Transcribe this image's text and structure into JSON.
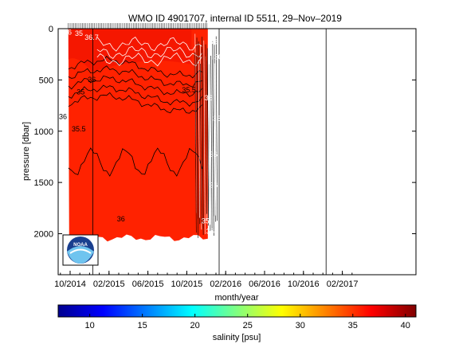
{
  "chart_data": {
    "type": "heatmap",
    "title": "WMO ID 4901707, internal ID 5511, 29–Nov–2019",
    "xlabel": "month/year",
    "ylabel": "pressure [dbar]",
    "x_ticks": [
      "10/2014",
      "02/2015",
      "06/2015",
      "10/2015",
      "02/2016",
      "06/2016",
      "10/2016",
      "02/2017"
    ],
    "y_ticks": [
      0,
      500,
      1000,
      1500,
      2000
    ],
    "y_range": [
      0,
      2400
    ],
    "y_inverted": true,
    "data_x_range": [
      "09/2014",
      "12/2015"
    ],
    "surface_contour_labels": [
      "36",
      "35",
      "36.7",
      "36.5",
      "36"
    ],
    "contour_labels_main": [
      "36",
      "35.5",
      "35",
      "36",
      "36",
      "35.5"
    ],
    "contour_labels_late": [
      "36",
      "36",
      "35",
      "36",
      "36",
      "35"
    ],
    "dominant_color": "#ff2200",
    "surface_color": "#ee1100",
    "vertical_markers": [
      "12/2014",
      "01/2016",
      "12/2016"
    ],
    "colorbar": {
      "label": "salinity [psu]",
      "range": [
        7,
        41
      ],
      "ticks": [
        10,
        15,
        20,
        25,
        30,
        35,
        40
      ],
      "colormap": [
        "#00008f",
        "#0000ff",
        "#0080ff",
        "#00ffff",
        "#80ff80",
        "#ffff00",
        "#ff8000",
        "#ff0000",
        "#800000"
      ]
    },
    "logo": {
      "text": "NOAA",
      "icon": "noaa-logo-icon"
    }
  }
}
